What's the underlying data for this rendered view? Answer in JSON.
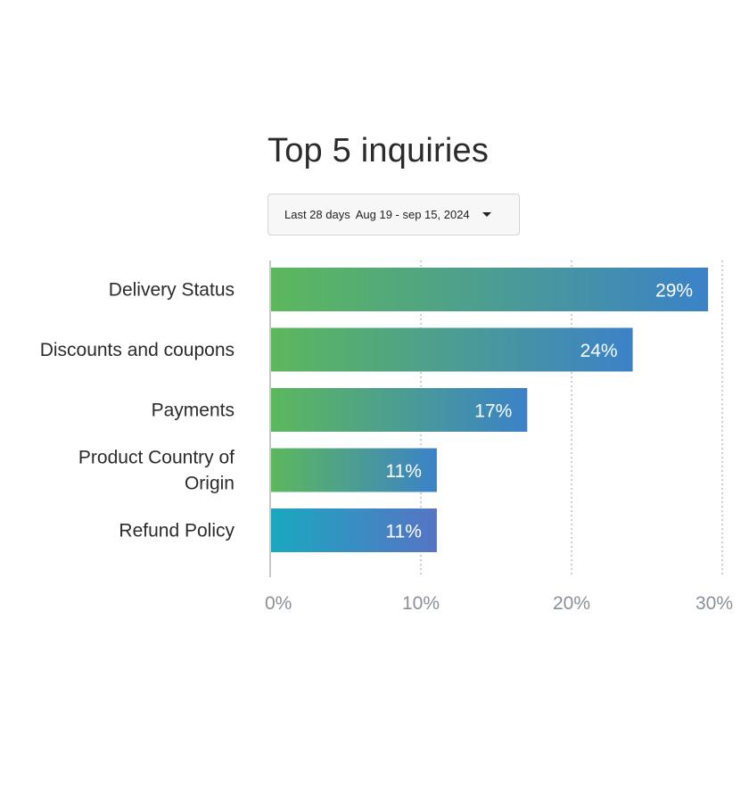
{
  "title": "Top 5 inquiries",
  "date_range": {
    "period": "Last 28 days",
    "dates": "Aug 19 - sep 15, 2024",
    "dropdown_icon": "caret-down-icon"
  },
  "chart_data": {
    "type": "bar",
    "orientation": "horizontal",
    "categories": [
      "Delivery Status",
      "Discounts and coupons",
      "Payments",
      "Product Country of Origin",
      "Refund Policy"
    ],
    "category_lines": [
      [
        "Delivery Status"
      ],
      [
        "Discounts and coupons"
      ],
      [
        "Payments"
      ],
      [
        "Product Country of",
        "Origin"
      ],
      [
        "Refund Policy"
      ]
    ],
    "values": [
      29,
      24,
      17,
      11,
      11
    ],
    "value_labels": [
      "29%",
      "24%",
      "17%",
      "11%",
      "11%"
    ],
    "xlim": [
      0,
      30
    ],
    "x_ticks": [
      0,
      10,
      20,
      30
    ],
    "x_tick_labels": [
      "0%",
      "10%",
      "20%",
      "30%"
    ],
    "grid": "vertical dotted",
    "colors": {
      "gradient_start": "#5cb85c",
      "gradient_end": "#3b82c8",
      "last_gradient_start": "#1aa8c0",
      "last_gradient_end": "#5674c4"
    }
  }
}
